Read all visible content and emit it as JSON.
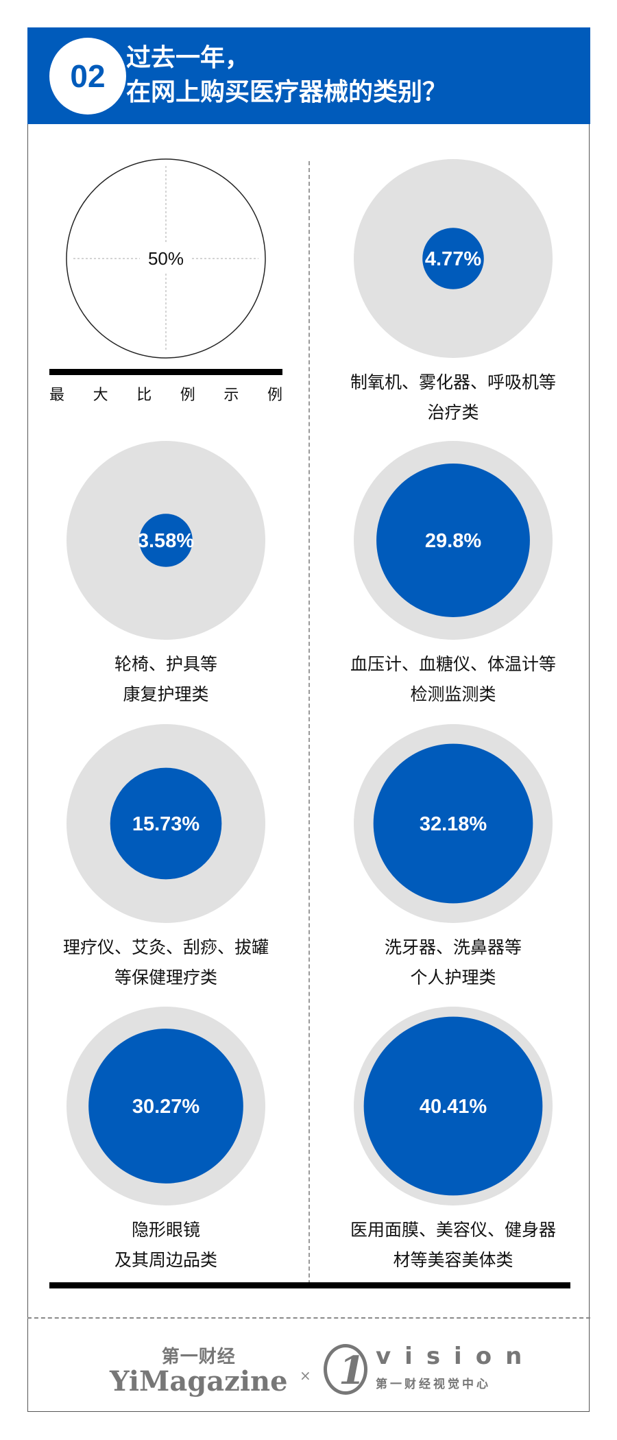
{
  "header": {
    "badge": "02",
    "title_line1": "过去一年，",
    "title_line2": "在网上购买医疗器械的类别？"
  },
  "legend": {
    "value_label": "50%",
    "caption_chars": [
      "最",
      "大",
      "比",
      "例",
      "示",
      "例"
    ]
  },
  "chart_data": {
    "type": "proportional-circles",
    "title": "过去一年，在网上购买医疗器械的类别？",
    "reference": {
      "value": 50,
      "label": "50%",
      "caption": "最大比例示例"
    },
    "unit": "%",
    "categories": [
      {
        "label_line1": "制氧机、雾化器、呼吸机等",
        "label_line2": "治疗类",
        "value": 4.77,
        "value_label": "4.77%"
      },
      {
        "label_line1": "轮椅、护具等",
        "label_line2": "康复护理类",
        "value": 3.58,
        "value_label": "3.58%"
      },
      {
        "label_line1": "血压计、血糖仪、体温计等",
        "label_line2": "检测监测类",
        "value": 29.8,
        "value_label": "29.8%"
      },
      {
        "label_line1": "理疗仪、艾灸、刮痧、拔罐",
        "label_line2": "等保健理疗类",
        "value": 15.73,
        "value_label": "15.73%"
      },
      {
        "label_line1": "洗牙器、洗鼻器等",
        "label_line2": "个人护理类",
        "value": 32.18,
        "value_label": "32.18%"
      },
      {
        "label_line1": "隐形眼镜",
        "label_line2": "及其周边品类",
        "value": 30.27,
        "value_label": "30.27%"
      },
      {
        "label_line1": "医用面膜、美容仪、健身器",
        "label_line2": "材等美容美体类",
        "value": 40.41,
        "value_label": "40.41%"
      }
    ],
    "colors": {
      "value": "#005bbb",
      "background": "#e1e1e1",
      "header": "#005bbb"
    }
  },
  "footer": {
    "logo1_cn": "第一财经",
    "logo1_en": "YiMagazine",
    "separator": "×",
    "logo2_en": "vision",
    "logo2_cn": "第一财经视觉中心"
  }
}
